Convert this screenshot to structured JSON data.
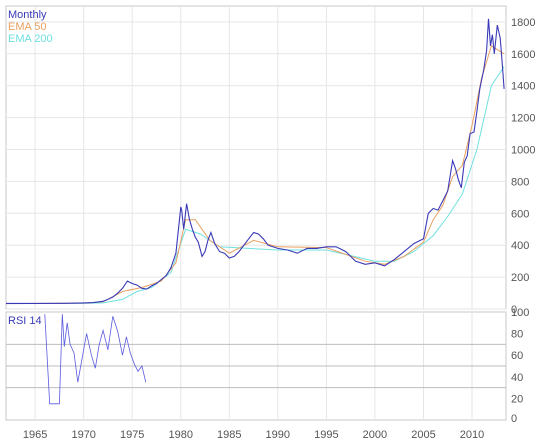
{
  "chart_data": [
    {
      "type": "line",
      "panel": "price",
      "legend_placement": "top-left",
      "grid": true,
      "ylim": [
        0,
        1900
      ],
      "xlim": [
        1962,
        2013.5
      ],
      "y_ticks": [
        0,
        200,
        400,
        600,
        800,
        1000,
        1200,
        1400,
        1600,
        1800
      ],
      "y_tick_labels": [
        "0",
        "200",
        "400",
        "600",
        "800",
        "1000",
        "1200",
        "1400",
        "1600",
        "1800"
      ],
      "series": [
        {
          "name": "Monthly",
          "color": "#3a3ab8",
          "x": [
            1962,
            1965,
            1968,
            1970,
            1971,
            1972,
            1972.5,
            1973,
            1973.5,
            1974,
            1974.5,
            1975,
            1975.5,
            1976,
            1976.5,
            1977,
            1977.5,
            1978,
            1978.5,
            1979,
            1979.5,
            1980,
            1980.1,
            1980.3,
            1980.6,
            1980.9,
            1981.2,
            1981.5,
            1981.8,
            1982.2,
            1982.5,
            1982.8,
            1983.1,
            1983.5,
            1984,
            1984.5,
            1985,
            1985.5,
            1986,
            1986.5,
            1987,
            1987.5,
            1988,
            1988.5,
            1989,
            1990,
            1991,
            1992,
            1993,
            1994,
            1995,
            1996,
            1997,
            1998,
            1999,
            2000,
            2001,
            2002,
            2003,
            2004,
            2005,
            2005.5,
            2006,
            2006.5,
            2007,
            2007.5,
            2008,
            2008.3,
            2008.6,
            2008.9,
            2009.2,
            2009.5,
            2009.8,
            2010.2,
            2010.5,
            2010.8,
            2011.2,
            2011.5,
            2011.7,
            2011.9,
            2012.1,
            2012.3,
            2012.6,
            2012.9,
            2013.1,
            2013.3
          ],
          "values": [
            35,
            35,
            36,
            38,
            40,
            48,
            60,
            75,
            100,
            130,
            175,
            160,
            150,
            130,
            125,
            145,
            160,
            185,
            210,
            260,
            350,
            640,
            620,
            500,
            660,
            560,
            500,
            450,
            420,
            330,
            360,
            430,
            480,
            410,
            360,
            350,
            320,
            330,
            360,
            400,
            440,
            480,
            470,
            440,
            400,
            380,
            370,
            350,
            380,
            380,
            390,
            390,
            360,
            300,
            280,
            290,
            270,
            310,
            360,
            410,
            440,
            600,
            630,
            620,
            680,
            740,
            930,
            880,
            810,
            760,
            920,
            960,
            1100,
            1110,
            1240,
            1380,
            1500,
            1620,
            1820,
            1650,
            1720,
            1600,
            1780,
            1700,
            1550,
            1380
          ]
        },
        {
          "name": "EMA 50",
          "color": "#e8a060",
          "x": [
            1962,
            1970,
            1972,
            1974,
            1976,
            1978,
            1979.5,
            1980.5,
            1981.5,
            1983,
            1985,
            1987.5,
            1990,
            1995,
            1999,
            2001,
            2003,
            2005,
            2006,
            2007,
            2008,
            2009,
            2010,
            2011,
            2012,
            2013.3
          ],
          "values": [
            34,
            37,
            45,
            110,
            135,
            175,
            290,
            560,
            560,
            430,
            350,
            430,
            390,
            385,
            300,
            280,
            330,
            420,
            560,
            650,
            830,
            900,
            1150,
            1450,
            1650,
            1600
          ]
        },
        {
          "name": "EMA 200",
          "color": "#70e0e0",
          "x": [
            1962,
            1970,
            1972,
            1974,
            1975.5,
            1977,
            1979,
            1980.5,
            1982,
            1984,
            1987,
            1990,
            1995,
            2000,
            2002,
            2004,
            2006,
            2007.5,
            2009,
            2010.5,
            2012,
            2013.3
          ],
          "values": [
            34,
            35,
            38,
            60,
            110,
            135,
            230,
            500,
            470,
            390,
            380,
            370,
            370,
            300,
            300,
            360,
            460,
            580,
            720,
            1000,
            1400,
            1520
          ]
        }
      ]
    },
    {
      "type": "line",
      "panel": "rsi",
      "legend_placement": "top-left",
      "grid": true,
      "ylim": [
        0,
        100
      ],
      "xlim": [
        1962,
        2013.5
      ],
      "y_ticks": [
        0,
        20,
        40,
        60,
        80,
        100
      ],
      "y_tick_labels": [
        "0",
        "20",
        "40",
        "60",
        "80",
        "100"
      ],
      "x_ticks": [
        1965,
        1970,
        1975,
        1980,
        1985,
        1990,
        1995,
        2000,
        2005,
        2010
      ],
      "x_tick_labels": [
        "1965",
        "1970",
        "1975",
        "1980",
        "1985",
        "1990",
        "1995",
        "2000",
        "2005",
        "2010"
      ],
      "h_lines": [
        30,
        50,
        70
      ],
      "series": [
        {
          "name": "RSI 14",
          "color": "#5a5ae0",
          "x": [
            1966,
            1966.5,
            1967,
            1967.5,
            1967.8,
            1968,
            1968.3,
            1968.6,
            1969,
            1969.4,
            1969.8,
            1970.3,
            1970.8,
            1971.2,
            1971.6,
            1972,
            1972.5,
            1973,
            1973.5,
            1974,
            1974.4,
            1974.8,
            1975.2,
            1975.6,
            1976,
            1976.4
          ],
          "values": [
            98,
            15,
            15,
            15,
            98,
            68,
            90,
            70,
            62,
            35,
            55,
            80,
            60,
            48,
            70,
            83,
            65,
            96,
            82,
            60,
            77,
            62,
            52,
            45,
            50,
            35
          ]
        }
      ]
    }
  ]
}
